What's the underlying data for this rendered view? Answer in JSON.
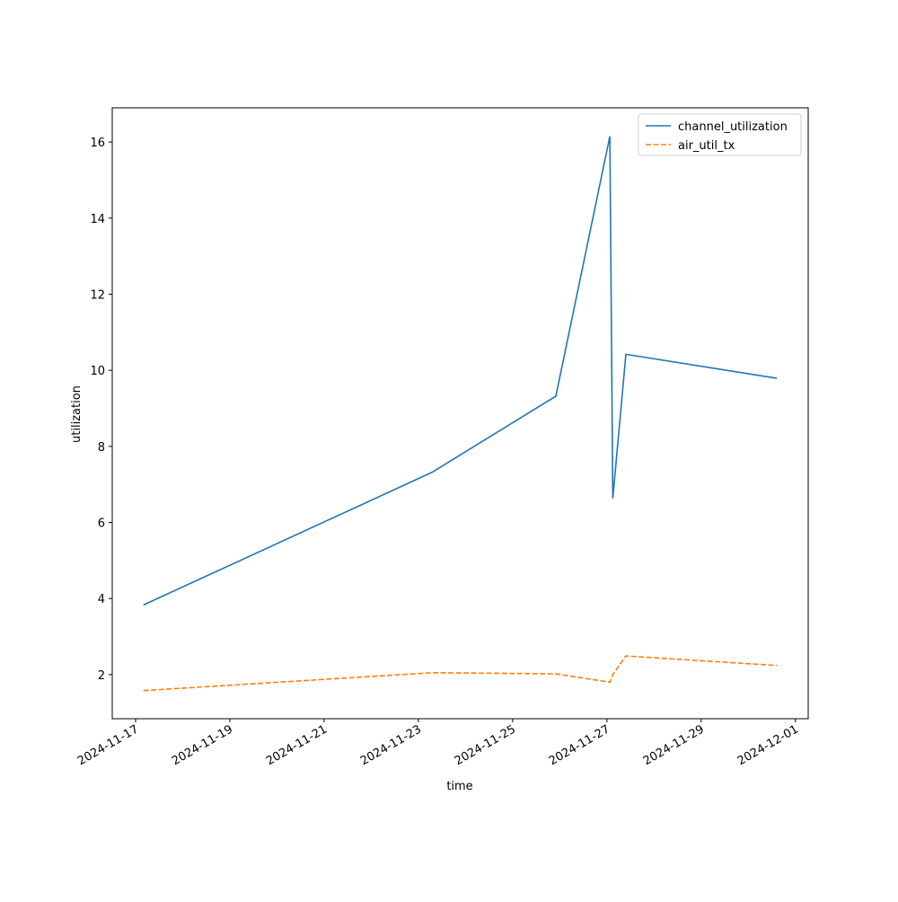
{
  "chart_data": {
    "type": "line",
    "xlabel": "time",
    "ylabel": "utilization",
    "x": [
      "2024-11-17T04:00",
      "2024-11-23T07:00",
      "2024-11-25T22:00",
      "2024-11-27T01:30",
      "2024-11-27T03:00",
      "2024-11-27T09:40",
      "2024-11-30T14:30"
    ],
    "series": [
      {
        "name": "channel_utilization",
        "color": "#1f77b4",
        "dash": "solid",
        "values": [
          3.83,
          7.32,
          9.32,
          16.15,
          6.63,
          10.42,
          9.79
        ]
      },
      {
        "name": "air_util_tx",
        "color": "#ff7f0e",
        "dash": "dashed",
        "values": [
          1.58,
          2.05,
          2.02,
          1.8,
          2.0,
          2.49,
          2.24
        ]
      }
    ],
    "xlim": [
      "2024-11-16T12:07",
      "2024-12-01T06:30"
    ],
    "xticks": [
      "2024-11-17",
      "2024-11-19",
      "2024-11-21",
      "2024-11-23",
      "2024-11-25",
      "2024-11-27",
      "2024-11-29",
      "2024-12-01"
    ],
    "ylim": [
      0.84,
      16.9
    ],
    "yticks": [
      2,
      4,
      6,
      8,
      10,
      12,
      14,
      16
    ],
    "grid": false,
    "legend": "upper right"
  }
}
